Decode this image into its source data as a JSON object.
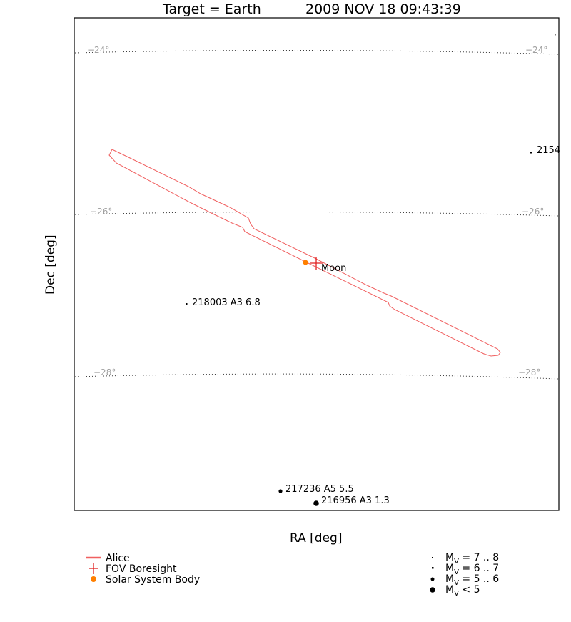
{
  "chart_data": {
    "type": "scatter",
    "title_target": "Target = Earth",
    "title_time": "2009 NOV 18 09:43:39",
    "xlabel": "RA [deg]",
    "ylabel": "Dec [deg]",
    "dec_gridlines": [
      {
        "dec": -24,
        "label": "−24°"
      },
      {
        "dec": -26,
        "label": "−26°"
      },
      {
        "dec": -28,
        "label": "−28°"
      }
    ],
    "stars": [
      {
        "label": "2154",
        "mag_class": "7-8"
      },
      {
        "label": "218003 A3 6.8",
        "mag_class": "6-7"
      },
      {
        "label": "217236 A5 5.5",
        "mag_class": "5-6"
      },
      {
        "label": "216956 A3 1.3",
        "mag_class": "<5"
      }
    ],
    "bodies": [
      {
        "label": "Moon",
        "color": "#ff7f00"
      }
    ],
    "fov": {
      "name": "Alice",
      "color": "#f06060"
    },
    "boresight_color": "#e02020"
  },
  "legend": {
    "alice": "Alice",
    "boresight": "FOV Boresight",
    "body": "Solar System Body",
    "mag": [
      {
        "pre": "M",
        "sub": "V",
        "post": " = 7 .. 8"
      },
      {
        "pre": "M",
        "sub": "V",
        "post": " = 6 .. 7"
      },
      {
        "pre": "M",
        "sub": "V",
        "post": " = 5 .. 6"
      },
      {
        "pre": "M",
        "sub": "V",
        "post": " < 5"
      }
    ]
  }
}
